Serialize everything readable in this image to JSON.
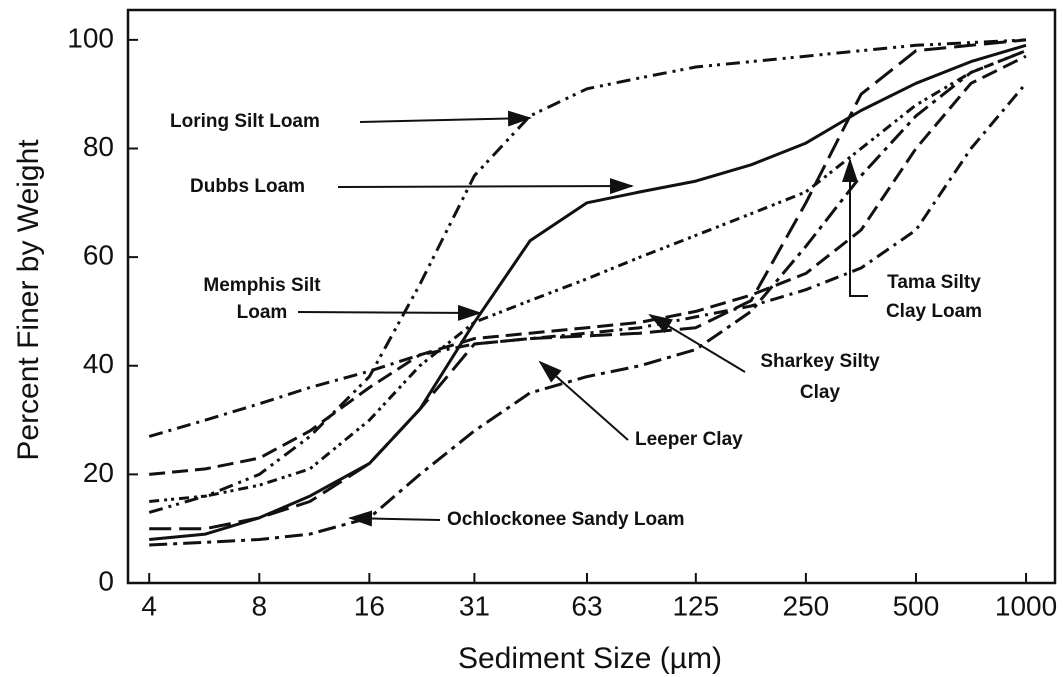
{
  "chart_data": {
    "type": "line",
    "xlabel": "Sediment Size (µm)",
    "ylabel": "Percent Finer by Weight",
    "xscale": "log",
    "x": [
      4,
      5.7,
      8,
      11,
      16,
      22,
      31,
      44,
      63,
      88,
      125,
      177,
      250,
      354,
      500,
      707,
      1000
    ],
    "xlim": [
      3.5,
      1200
    ],
    "xticks": [
      4,
      8,
      16,
      31,
      63,
      125,
      250,
      500,
      1000
    ],
    "ylim": [
      0,
      105.5
    ],
    "yticks": [
      0,
      20,
      40,
      60,
      80,
      100
    ],
    "series": [
      {
        "name": "Loring Silt Loam",
        "color": "#111111",
        "dash": "14 6 3 5 3 6",
        "values": [
          13,
          16,
          20,
          27,
          38,
          55,
          75,
          86,
          91,
          93,
          95,
          96,
          97,
          98,
          99,
          99.5,
          100
        ]
      },
      {
        "name": "Dubbs Loam",
        "color": "#111111",
        "dash": "none",
        "values": [
          8,
          9,
          12,
          16,
          22,
          32,
          48,
          63,
          70,
          72,
          74,
          77,
          81,
          87,
          92,
          96,
          99
        ]
      },
      {
        "name": "Memphis Silt Loam",
        "color": "#111111",
        "dash": "10 5 3 4 3 5",
        "values": [
          15,
          16,
          18,
          21,
          30,
          40,
          48,
          52,
          56,
          60,
          64,
          68,
          72,
          80,
          88,
          94,
          98
        ]
      },
      {
        "name": "Tama Silty Clay Loam",
        "color": "#111111",
        "dash": "16 7",
        "values": [
          20,
          21,
          23,
          28,
          36,
          42,
          45,
          46,
          47,
          48,
          50,
          53,
          57,
          65,
          80,
          92,
          97
        ]
      },
      {
        "name": "Sharkey Silty Clay",
        "color": "#111111",
        "dash": "14 6 3 6",
        "values": [
          27,
          30,
          33,
          36,
          39,
          42,
          44,
          45,
          46,
          47,
          49,
          51,
          54,
          58,
          65,
          80,
          92
        ]
      },
      {
        "name": "Leeper Clay",
        "color": "#111111",
        "dash": "22 8",
        "values": [
          10,
          10,
          12,
          15,
          22,
          32,
          44,
          45,
          45.5,
          46,
          47,
          52,
          70,
          90,
          98,
          99,
          100
        ]
      },
      {
        "name": "Ochlockonee Sandy Loam",
        "color": "#111111",
        "dash": "18 6 4 6",
        "values": [
          7,
          7.5,
          8,
          9,
          12,
          20,
          28,
          35,
          38,
          40,
          43,
          50,
          62,
          75,
          86,
          94,
          98
        ]
      }
    ]
  }
}
